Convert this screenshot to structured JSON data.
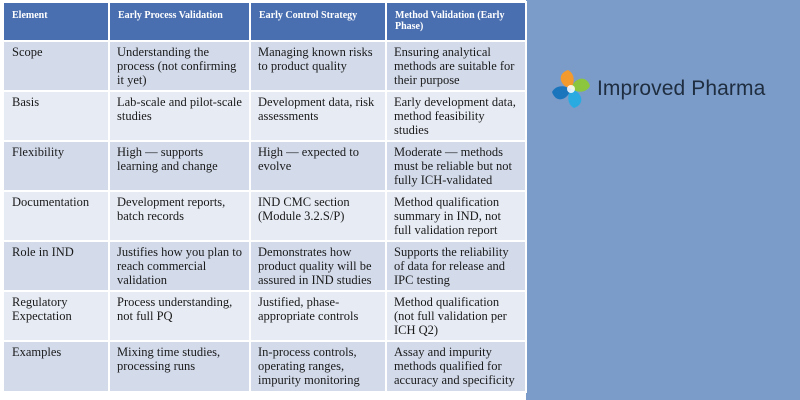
{
  "table": {
    "headers": [
      "Element",
      "Early Process Validation",
      "Early Control Strategy",
      "Method Validation (Early Phase)"
    ],
    "rows": [
      [
        "Scope",
        "Understanding the process (not confirming it yet)",
        "Managing known risks to product quality",
        "Ensuring analytical methods are suitable for their purpose"
      ],
      [
        "Basis",
        "Lab-scale and pilot-scale studies",
        "Development data, risk assessments",
        "Early development data, method feasibility studies"
      ],
      [
        "Flexibility",
        "High — supports learning and change",
        "High — expected to evolve",
        "Moderate — methods must be reliable but not fully ICH-validated"
      ],
      [
        "Documentation",
        "Development reports, batch records",
        "IND CMC section (Module 3.2.S/P)",
        "Method qualification summary in IND, not full validation report"
      ],
      [
        "Role in IND",
        "Justifies how you plan to reach commercial validation",
        "Demonstrates how product quality will be assured in IND studies",
        "Supports the reliability of data for release and IPC testing"
      ],
      [
        "Regulatory Expectation",
        "Process understanding, not full PQ",
        "Justified, phase-appropriate controls",
        "Method qualification (not full validation per ICH Q2)"
      ],
      [
        "Examples",
        "Mixing time studies, processing  runs",
        "In-process controls, operating ranges, impurity monitoring",
        "Assay and impurity methods qualified for accuracy and specificity"
      ]
    ]
  },
  "brand": {
    "name": "Improved Pharma",
    "logo_icon": "pinwheel-logo-icon"
  },
  "colors": {
    "header_bg": "#4a6fb0",
    "row_dark": "#d3dbeb",
    "row_light": "#e7ebf4",
    "side_panel": "#7b9cc8"
  }
}
